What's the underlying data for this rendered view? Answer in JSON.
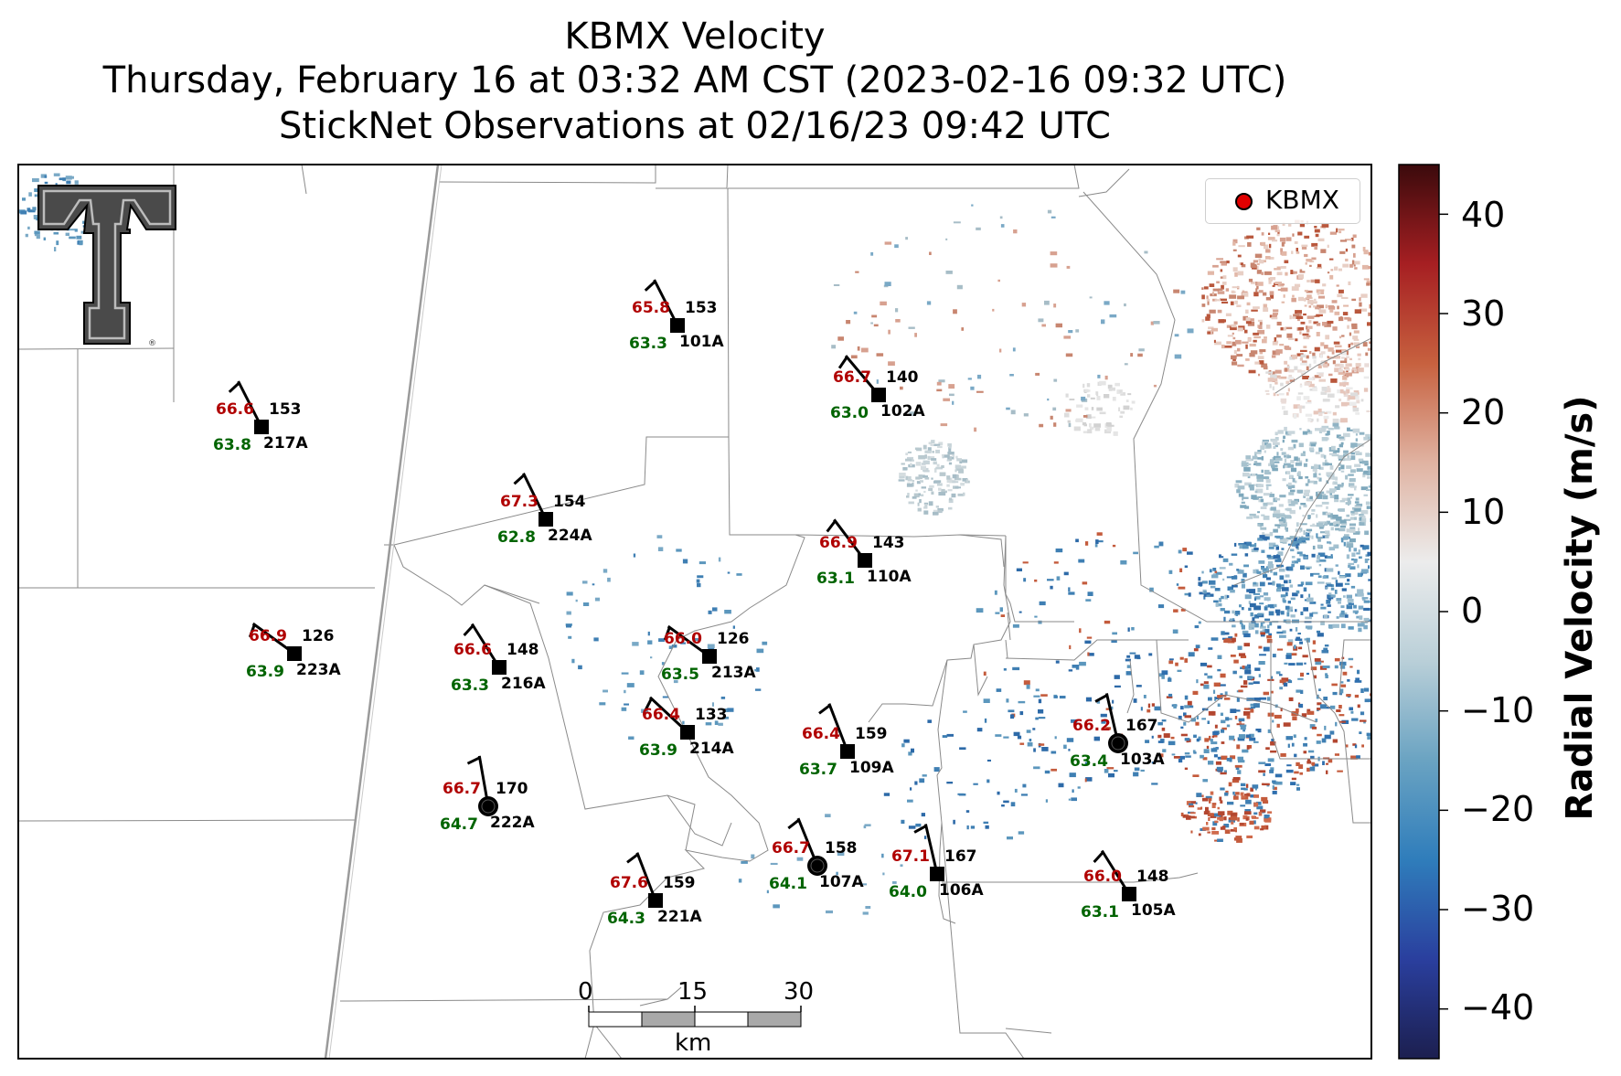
{
  "title": {
    "line1": "KBMX Velocity",
    "line2": "Thursday, February 16 at 03:32 AM CST (2023-02-16 09:32 UTC)",
    "line3": "StickNet Observations at 02/16/23 09:42 UTC"
  },
  "legend": {
    "label": "KBMX",
    "marker_color": "#e00000"
  },
  "colorbar": {
    "label": "Radial Velocity (m/s)",
    "range": [
      -45,
      45
    ],
    "ticks": [
      "40",
      "30",
      "20",
      "10",
      "0",
      "−10",
      "−20",
      "−30",
      "−40"
    ],
    "colors": [
      "#1c1f4f",
      "#2a3f9e",
      "#2f7dbb",
      "#6aa3c2",
      "#b9cfd8",
      "#ececec",
      "#e0b3a2",
      "#c7613f",
      "#a61f22",
      "#3b0a0c"
    ]
  },
  "scalebar": {
    "labels": [
      "0",
      "15",
      "30"
    ],
    "unit": "km"
  },
  "logo": {
    "name": "Texas Tech Double T"
  },
  "stations": [
    {
      "id": "101A",
      "temp": "65.8",
      "dew": "63.3",
      "dir": "153",
      "marker": "square"
    },
    {
      "id": "102A",
      "temp": "66.7",
      "dew": "63.0",
      "dir": "140",
      "marker": "square"
    },
    {
      "id": "217A",
      "temp": "66.6",
      "dew": "63.8",
      "dir": "153",
      "marker": "square"
    },
    {
      "id": "224A",
      "temp": "67.3",
      "dew": "62.8",
      "dir": "154",
      "marker": "square"
    },
    {
      "id": "110A",
      "temp": "66.9",
      "dew": "63.1",
      "dir": "143",
      "marker": "square"
    },
    {
      "id": "223A",
      "temp": "66.9",
      "dew": "63.9",
      "dir": "126",
      "marker": "square"
    },
    {
      "id": "216A",
      "temp": "66.6",
      "dew": "63.3",
      "dir": "148",
      "marker": "square"
    },
    {
      "id": "213A",
      "temp": "66.0",
      "dew": "63.5",
      "dir": "126",
      "marker": "square"
    },
    {
      "id": "214A",
      "temp": "66.4",
      "dew": "63.9",
      "dir": "133",
      "marker": "square"
    },
    {
      "id": "109A",
      "temp": "66.4",
      "dew": "63.7",
      "dir": "159",
      "marker": "square"
    },
    {
      "id": "103A",
      "temp": "66.2",
      "dew": "63.4",
      "dir": "167",
      "marker": "circle"
    },
    {
      "id": "222A",
      "temp": "66.7",
      "dew": "64.7",
      "dir": "170",
      "marker": "circle"
    },
    {
      "id": "107A",
      "temp": "66.7",
      "dew": "64.1",
      "dir": "158",
      "marker": "circle"
    },
    {
      "id": "106A",
      "temp": "67.1",
      "dew": "64.0",
      "dir": "167",
      "marker": "square"
    },
    {
      "id": "221A",
      "temp": "67.6",
      "dew": "64.3",
      "dir": "159",
      "marker": "square"
    },
    {
      "id": "105A",
      "temp": "66.0",
      "dew": "63.1",
      "dir": "148",
      "marker": "square"
    }
  ]
}
